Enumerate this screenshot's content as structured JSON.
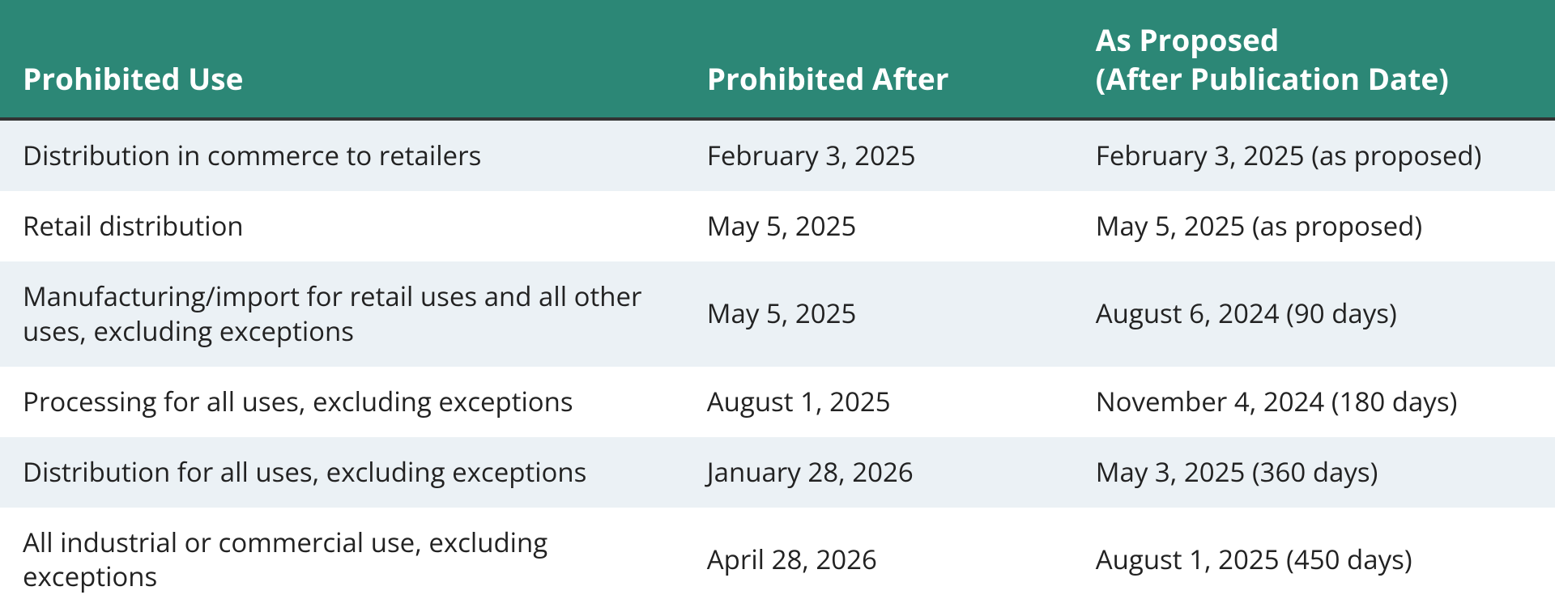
{
  "table": {
    "header_bg": "#2c8776",
    "header_fg": "#ffffff",
    "header_font_size": 37,
    "header_font_weight": 700,
    "row_even_bg": "#ebf1f5",
    "row_odd_bg": "#ffffff",
    "cell_font_size": 33,
    "cell_fg": "#222222",
    "underline_color": "#333333",
    "columns": [
      {
        "key": "use",
        "label": "Prohibited Use",
        "width_pct": 44
      },
      {
        "key": "after",
        "label": "Prohibited After",
        "width_pct": 25
      },
      {
        "key": "proposed",
        "label": "As Proposed\n(After Publication Date)",
        "width_pct": 31
      }
    ],
    "rows": [
      {
        "use": "Distribution in commerce to retailers",
        "after": "February 3, 2025",
        "proposed": "February 3, 2025 (as proposed)"
      },
      {
        "use": "Retail distribution",
        "after": "May 5, 2025",
        "proposed": "May 5, 2025 (as proposed)"
      },
      {
        "use": "Manufacturing/import for retail uses and all other uses, excluding exceptions",
        "after": "May 5, 2025",
        "proposed": "August 6, 2024 (90 days)"
      },
      {
        "use": "Processing for all uses, excluding exceptions",
        "after": "August 1, 2025",
        "proposed": "November 4, 2024 (180 days)"
      },
      {
        "use": "Distribution for all uses, excluding exceptions",
        "after": "January 28, 2026",
        "proposed": "May 3, 2025 (360 days)"
      },
      {
        "use": "All industrial or commercial use, excluding exceptions",
        "after": "April 28, 2026",
        "proposed": "August 1, 2025 (450 days)"
      }
    ]
  }
}
